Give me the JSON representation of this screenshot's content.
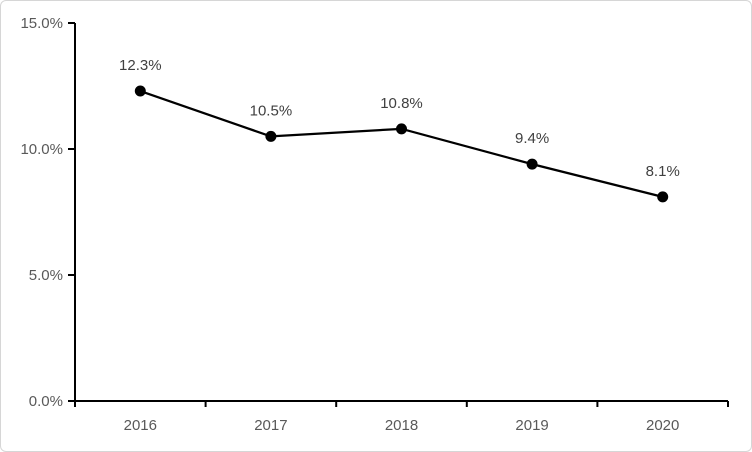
{
  "chart_data": {
    "type": "line",
    "title": "",
    "xlabel": "",
    "ylabel": "",
    "categories": [
      "2016",
      "2017",
      "2018",
      "2019",
      "2020"
    ],
    "values": [
      12.3,
      10.5,
      10.8,
      9.4,
      8.1
    ],
    "data_labels": [
      "12.3%",
      "10.5%",
      "10.8%",
      "9.4%",
      "8.1%"
    ],
    "y_ticks": [
      {
        "value": 0,
        "label": "0.0%"
      },
      {
        "value": 5,
        "label": "5.0%"
      },
      {
        "value": 10,
        "label": "10.0%"
      },
      {
        "value": 15,
        "label": "15.0%"
      }
    ],
    "ylim": [
      0,
      15
    ],
    "grid": false,
    "legend_position": "none",
    "series_color": "#000000",
    "marker_color": "#000000",
    "axis_color": "#000000",
    "axis_label_color": "#595959",
    "data_label_color": "#404040",
    "frame_border_color": "#d6d6d6",
    "background_color": "#ffffff"
  }
}
